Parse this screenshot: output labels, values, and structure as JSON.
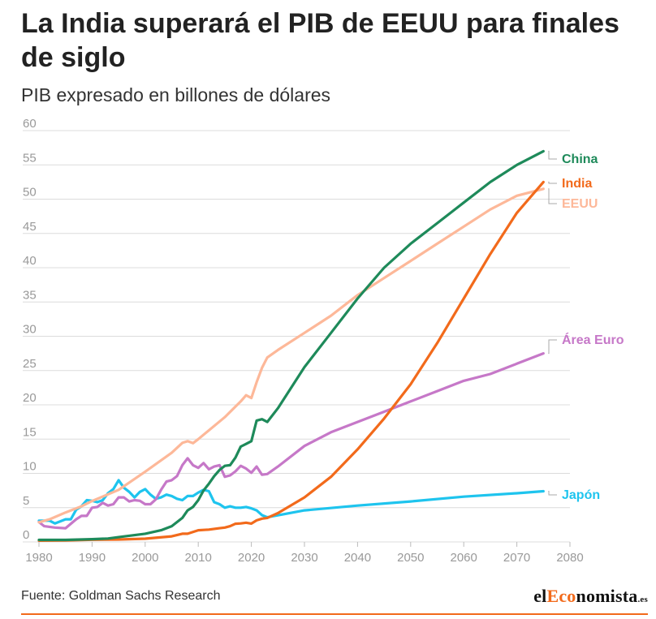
{
  "header": {
    "title": "La India superará el PIB de EEUU para finales de siglo",
    "subtitle": "PIB expresado en billones de dólares"
  },
  "footer": {
    "source": "Fuente: Goldman Sachs Research",
    "logo_prefix": "el",
    "logo_accent": "Eco",
    "logo_suffix": "nomista",
    "logo_tld": ".es",
    "accent_color": "#f26a1b"
  },
  "chart_data": {
    "type": "line",
    "title": "La India superará el PIB de EEUU para finales de siglo",
    "subtitle": "PIB expresado en billones de dólares",
    "xlabel": "",
    "ylabel": "",
    "xlim": [
      1979,
      2080
    ],
    "ylim": [
      0,
      60
    ],
    "x_ticks": [
      1980,
      1990,
      2000,
      2010,
      2020,
      2030,
      2040,
      2050,
      2060,
      2070,
      2080
    ],
    "y_ticks": [
      0,
      5,
      10,
      15,
      20,
      25,
      30,
      35,
      40,
      45,
      50,
      55,
      60
    ],
    "grid": true,
    "legend": "labels at line ends (right)",
    "series": [
      {
        "name": "China",
        "color": "#1e8a5a",
        "points": [
          [
            1980,
            0.3
          ],
          [
            1985,
            0.3
          ],
          [
            1990,
            0.4
          ],
          [
            1993,
            0.5
          ],
          [
            1995,
            0.7
          ],
          [
            2000,
            1.2
          ],
          [
            2003,
            1.7
          ],
          [
            2005,
            2.3
          ],
          [
            2007,
            3.5
          ],
          [
            2008,
            4.6
          ],
          [
            2009,
            5.1
          ],
          [
            2010,
            6.1
          ],
          [
            2011,
            7.5
          ],
          [
            2012,
            8.5
          ],
          [
            2013,
            9.6
          ],
          [
            2014,
            10.5
          ],
          [
            2015,
            11.1
          ],
          [
            2016,
            11.2
          ],
          [
            2017,
            12.3
          ],
          [
            2018,
            13.9
          ],
          [
            2019,
            14.3
          ],
          [
            2020,
            14.7
          ],
          [
            2021,
            17.7
          ],
          [
            2022,
            17.9
          ],
          [
            2023,
            17.5
          ],
          [
            2025,
            19.5
          ],
          [
            2030,
            25.5
          ],
          [
            2035,
            30.5
          ],
          [
            2040,
            35.5
          ],
          [
            2045,
            40
          ],
          [
            2050,
            43.5
          ],
          [
            2055,
            46.5
          ],
          [
            2060,
            49.5
          ],
          [
            2065,
            52.5
          ],
          [
            2070,
            55
          ],
          [
            2075,
            57
          ]
        ]
      },
      {
        "name": "India",
        "color": "#f26a1b",
        "points": [
          [
            1980,
            0.19
          ],
          [
            1985,
            0.23
          ],
          [
            1990,
            0.32
          ],
          [
            1995,
            0.36
          ],
          [
            2000,
            0.47
          ],
          [
            2005,
            0.82
          ],
          [
            2007,
            1.2
          ],
          [
            2008,
            1.2
          ],
          [
            2010,
            1.7
          ],
          [
            2012,
            1.8
          ],
          [
            2014,
            2.0
          ],
          [
            2015,
            2.1
          ],
          [
            2016,
            2.3
          ],
          [
            2017,
            2.65
          ],
          [
            2018,
            2.7
          ],
          [
            2019,
            2.8
          ],
          [
            2020,
            2.67
          ],
          [
            2021,
            3.15
          ],
          [
            2022,
            3.4
          ],
          [
            2023,
            3.5
          ],
          [
            2025,
            4.2
          ],
          [
            2030,
            6.5
          ],
          [
            2035,
            9.5
          ],
          [
            2040,
            13.5
          ],
          [
            2045,
            18
          ],
          [
            2050,
            23
          ],
          [
            2055,
            29
          ],
          [
            2060,
            35.5
          ],
          [
            2065,
            42
          ],
          [
            2070,
            48
          ],
          [
            2075,
            52.5
          ]
        ]
      },
      {
        "name": "EEUU",
        "color": "#fdb899",
        "points": [
          [
            1980,
            2.86
          ],
          [
            1982,
            3.3
          ],
          [
            1985,
            4.3
          ],
          [
            1988,
            5.2
          ],
          [
            1990,
            5.96
          ],
          [
            1995,
            7.6
          ],
          [
            2000,
            10.25
          ],
          [
            2005,
            13.0
          ],
          [
            2007,
            14.45
          ],
          [
            2008,
            14.7
          ],
          [
            2009,
            14.4
          ],
          [
            2010,
            15.0
          ],
          [
            2015,
            18.2
          ],
          [
            2018,
            20.5
          ],
          [
            2019,
            21.4
          ],
          [
            2020,
            21.0
          ],
          [
            2021,
            23.3
          ],
          [
            2022,
            25.4
          ],
          [
            2023,
            26.9
          ],
          [
            2025,
            28
          ],
          [
            2030,
            30.5
          ],
          [
            2035,
            33
          ],
          [
            2040,
            36
          ],
          [
            2045,
            38.5
          ],
          [
            2050,
            41
          ],
          [
            2055,
            43.5
          ],
          [
            2060,
            46
          ],
          [
            2065,
            48.5
          ],
          [
            2070,
            50.5
          ],
          [
            2075,
            51.5
          ]
        ]
      },
      {
        "name": "Área Euro",
        "color": "#c678c8",
        "points": [
          [
            1980,
            2.9
          ],
          [
            1981,
            2.3
          ],
          [
            1983,
            2.1
          ],
          [
            1985,
            2.0
          ],
          [
            1987,
            3.3
          ],
          [
            1988,
            3.8
          ],
          [
            1989,
            3.8
          ],
          [
            1990,
            5.0
          ],
          [
            1991,
            5.1
          ],
          [
            1992,
            5.7
          ],
          [
            1993,
            5.3
          ],
          [
            1994,
            5.5
          ],
          [
            1995,
            6.5
          ],
          [
            1996,
            6.5
          ],
          [
            1997,
            5.9
          ],
          [
            1998,
            6.1
          ],
          [
            1999,
            6.0
          ],
          [
            2000,
            5.5
          ],
          [
            2001,
            5.5
          ],
          [
            2002,
            6.2
          ],
          [
            2003,
            7.6
          ],
          [
            2004,
            8.8
          ],
          [
            2005,
            9.0
          ],
          [
            2006,
            9.6
          ],
          [
            2007,
            11.2
          ],
          [
            2008,
            12.2
          ],
          [
            2009,
            11.2
          ],
          [
            2010,
            10.8
          ],
          [
            2011,
            11.5
          ],
          [
            2012,
            10.6
          ],
          [
            2013,
            11.0
          ],
          [
            2014,
            11.2
          ],
          [
            2015,
            9.5
          ],
          [
            2016,
            9.7
          ],
          [
            2017,
            10.3
          ],
          [
            2018,
            11.1
          ],
          [
            2019,
            10.7
          ],
          [
            2020,
            10.1
          ],
          [
            2021,
            11.0
          ],
          [
            2022,
            9.8
          ],
          [
            2023,
            9.9
          ],
          [
            2025,
            11
          ],
          [
            2030,
            14
          ],
          [
            2035,
            16
          ],
          [
            2040,
            17.5
          ],
          [
            2045,
            19
          ],
          [
            2050,
            20.5
          ],
          [
            2055,
            22
          ],
          [
            2060,
            23.5
          ],
          [
            2065,
            24.5
          ],
          [
            2070,
            26
          ],
          [
            2075,
            27.5
          ]
        ]
      },
      {
        "name": "Japón",
        "color": "#1ec4ee",
        "points": [
          [
            1980,
            3.1
          ],
          [
            1982,
            3.1
          ],
          [
            1983,
            2.7
          ],
          [
            1985,
            3.3
          ],
          [
            1986,
            3.3
          ],
          [
            1987,
            4.7
          ],
          [
            1988,
            5.2
          ],
          [
            1989,
            6.1
          ],
          [
            1990,
            6.0
          ],
          [
            1991,
            5.8
          ],
          [
            1992,
            6.1
          ],
          [
            1993,
            7.1
          ],
          [
            1994,
            7.7
          ],
          [
            1995,
            9.0
          ],
          [
            1996,
            7.9
          ],
          [
            1997,
            7.3
          ],
          [
            1998,
            6.5
          ],
          [
            1999,
            7.3
          ],
          [
            2000,
            7.7
          ],
          [
            2001,
            6.9
          ],
          [
            2002,
            6.3
          ],
          [
            2003,
            6.5
          ],
          [
            2004,
            6.9
          ],
          [
            2005,
            6.7
          ],
          [
            2006,
            6.3
          ],
          [
            2007,
            6.1
          ],
          [
            2008,
            6.7
          ],
          [
            2009,
            6.7
          ],
          [
            2010,
            7.2
          ],
          [
            2011,
            7.6
          ],
          [
            2012,
            7.4
          ],
          [
            2013,
            5.8
          ],
          [
            2014,
            5.5
          ],
          [
            2015,
            5.0
          ],
          [
            2016,
            5.2
          ],
          [
            2017,
            5.0
          ],
          [
            2018,
            5.0
          ],
          [
            2019,
            5.1
          ],
          [
            2020,
            4.9
          ],
          [
            2021,
            4.6
          ],
          [
            2022,
            3.9
          ],
          [
            2023,
            3.6
          ],
          [
            2030,
            4.6
          ],
          [
            2040,
            5.3
          ],
          [
            2050,
            5.9
          ],
          [
            2060,
            6.6
          ],
          [
            2070,
            7.1
          ],
          [
            2075,
            7.4
          ]
        ]
      }
    ]
  }
}
